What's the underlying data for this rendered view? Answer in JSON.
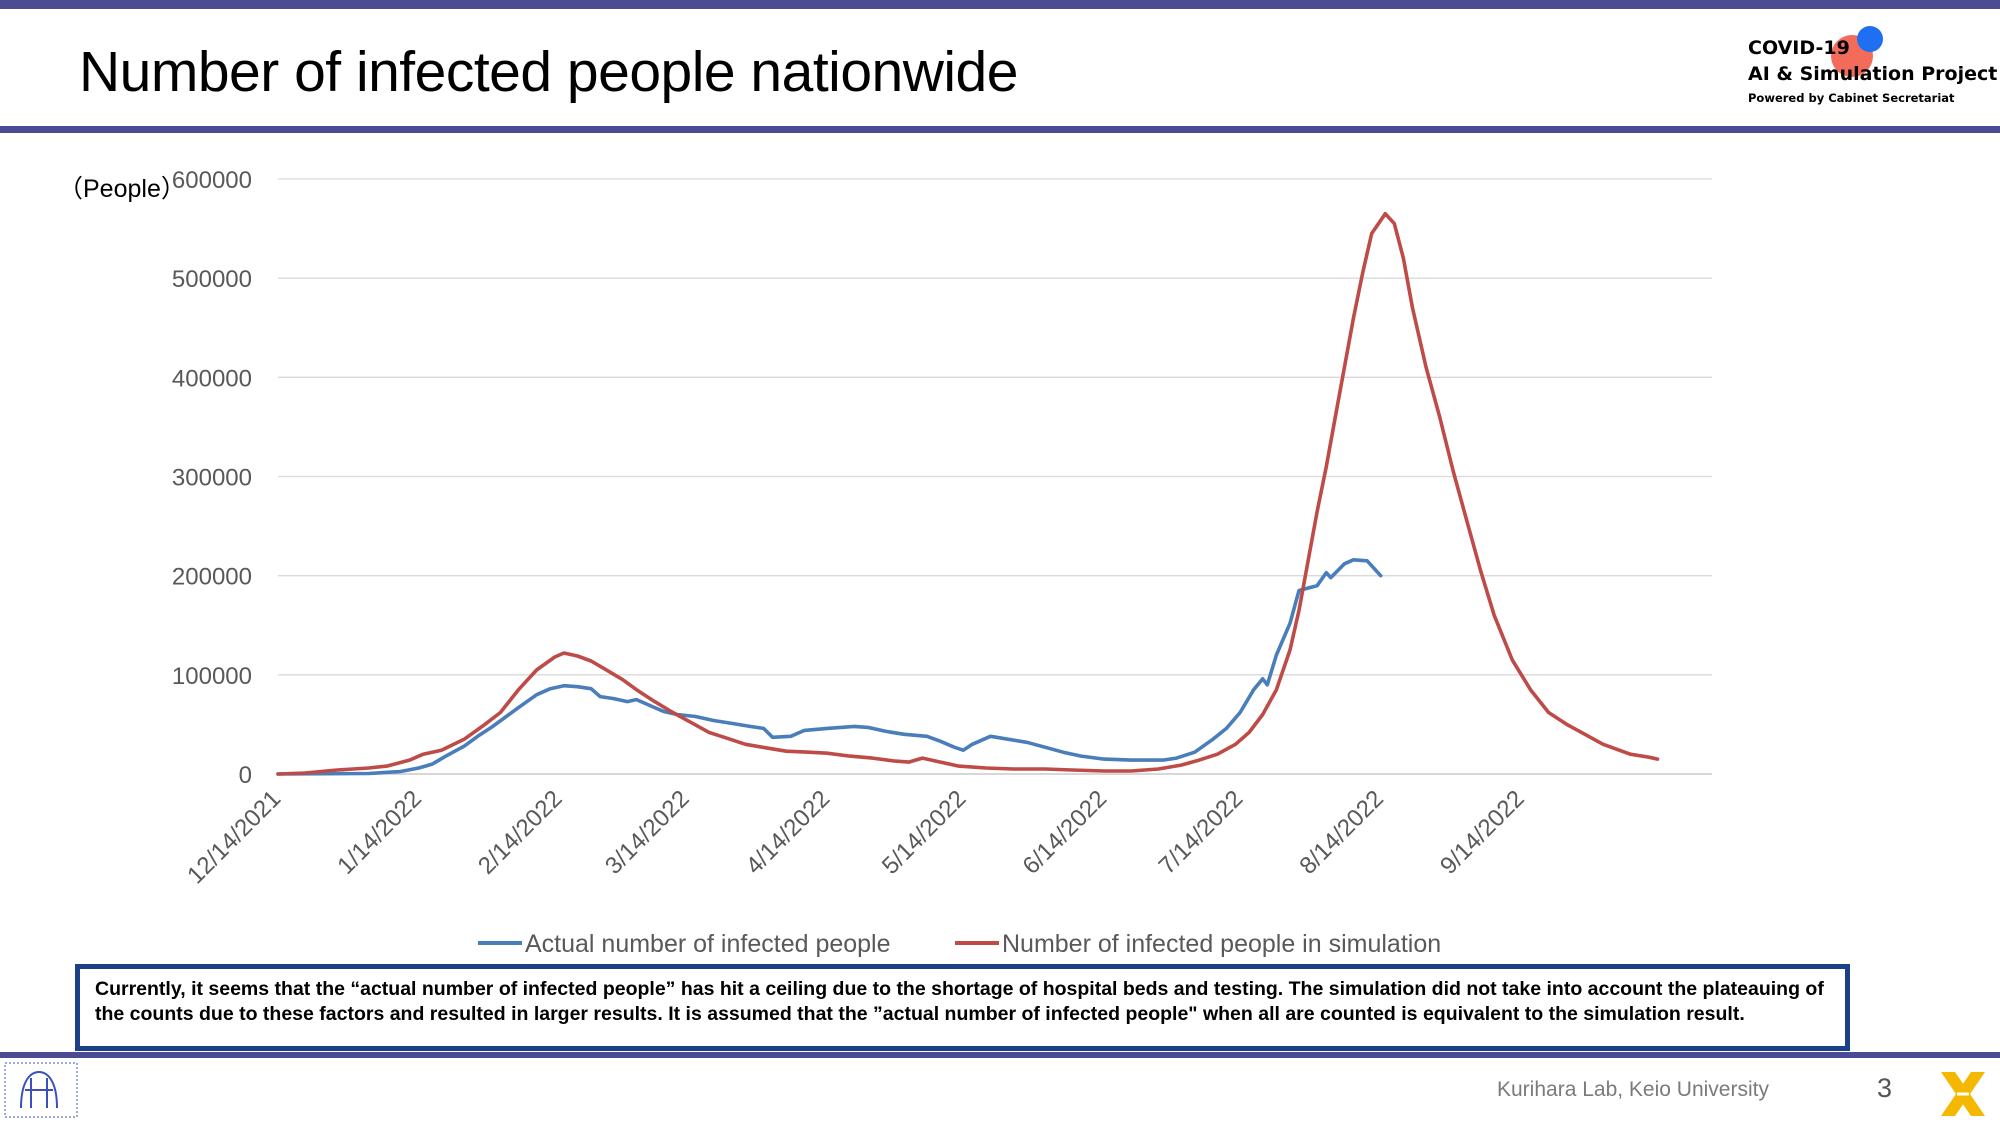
{
  "slide": {
    "title": "Number of infected people nationwide",
    "page_number": "3",
    "footer_credit": "Kurihara Lab, Keio University",
    "unit_label": "（People）"
  },
  "logo": {
    "line1": "COVID-19",
    "line2": "AI & Simulation Project",
    "line3": "Powered by Cabinet Secretariat"
  },
  "note": "Currently, it seems that the “actual number of infected people” has hit a ceiling due to the shortage of hospital beds and testing. The simulation did not take into account the plateauing of the counts due to these factors and resulted in larger results. It is assumed that the ”actual number of infected people\" when all are counted is equivalent to the simulation result.",
  "colors": {
    "accent_bar": "#4a4b93",
    "note_border": "#1c3f88",
    "actual_series": "#4a7ebb",
    "simulation_series": "#be4b48",
    "gridline": "#d9d9d9",
    "axis_text": "#595959"
  },
  "chart_data": {
    "type": "line",
    "title": "",
    "xlabel": "",
    "ylabel": "（People）",
    "ylim": [
      0,
      600000
    ],
    "yticks": [
      "0",
      "100000",
      "200000",
      "300000",
      "400000",
      "500000",
      "600000"
    ],
    "xlim": [
      "2021-12-14",
      "2022-10-26"
    ],
    "xticks": [
      "12/14/2021",
      "1/14/2022",
      "2/14/2022",
      "3/14/2022",
      "4/14/2022",
      "5/14/2022",
      "6/14/2022",
      "7/14/2022",
      "8/14/2022",
      "9/14/2022"
    ],
    "xtick_dates": [
      "2021-12-14",
      "2022-01-14",
      "2022-02-14",
      "2022-03-14",
      "2022-04-14",
      "2022-05-14",
      "2022-06-14",
      "2022-07-14",
      "2022-08-14",
      "2022-09-14"
    ],
    "grid": true,
    "legend": "bottom",
    "series": [
      {
        "name": "Actual number of infected people",
        "color": "#4a7ebb",
        "points": [
          [
            "2021-12-14",
            0
          ],
          [
            "2021-12-24",
            300
          ],
          [
            "2022-01-03",
            500
          ],
          [
            "2022-01-10",
            2500
          ],
          [
            "2022-01-14",
            6000
          ],
          [
            "2022-01-17",
            10000
          ],
          [
            "2022-01-20",
            18000
          ],
          [
            "2022-01-24",
            28000
          ],
          [
            "2022-01-27",
            38000
          ],
          [
            "2022-01-30",
            47000
          ],
          [
            "2022-02-02",
            57000
          ],
          [
            "2022-02-05",
            67000
          ],
          [
            "2022-02-09",
            80000
          ],
          [
            "2022-02-12",
            86000
          ],
          [
            "2022-02-15",
            89000
          ],
          [
            "2022-02-18",
            88000
          ],
          [
            "2022-02-21",
            86000
          ],
          [
            "2022-02-23",
            78000
          ],
          [
            "2022-02-26",
            76000
          ],
          [
            "2022-03-01",
            73000
          ],
          [
            "2022-03-03",
            75000
          ],
          [
            "2022-03-05",
            71000
          ],
          [
            "2022-03-07",
            67000
          ],
          [
            "2022-03-09",
            63000
          ],
          [
            "2022-03-12",
            60000
          ],
          [
            "2022-03-16",
            58000
          ],
          [
            "2022-03-20",
            54000
          ],
          [
            "2022-03-24",
            51000
          ],
          [
            "2022-03-28",
            48000
          ],
          [
            "2022-03-31",
            46000
          ],
          [
            "2022-04-02",
            37000
          ],
          [
            "2022-04-06",
            38000
          ],
          [
            "2022-04-09",
            44000
          ],
          [
            "2022-04-14",
            46000
          ],
          [
            "2022-04-20",
            48000
          ],
          [
            "2022-04-23",
            47000
          ],
          [
            "2022-04-27",
            43000
          ],
          [
            "2022-05-01",
            40000
          ],
          [
            "2022-05-06",
            38000
          ],
          [
            "2022-05-09",
            33000
          ],
          [
            "2022-05-12",
            27000
          ],
          [
            "2022-05-14",
            24000
          ],
          [
            "2022-05-16",
            30000
          ],
          [
            "2022-05-20",
            38000
          ],
          [
            "2022-05-24",
            35000
          ],
          [
            "2022-05-28",
            32000
          ],
          [
            "2022-06-01",
            27000
          ],
          [
            "2022-06-05",
            22000
          ],
          [
            "2022-06-09",
            18000
          ],
          [
            "2022-06-14",
            15000
          ],
          [
            "2022-06-20",
            14000
          ],
          [
            "2022-06-27",
            14000
          ],
          [
            "2022-06-30",
            16000
          ],
          [
            "2022-07-04",
            22000
          ],
          [
            "2022-07-08",
            35000
          ],
          [
            "2022-07-11",
            46000
          ],
          [
            "2022-07-14",
            62000
          ],
          [
            "2022-07-17",
            85000
          ],
          [
            "2022-07-19",
            96000
          ],
          [
            "2022-07-20",
            90000
          ],
          [
            "2022-07-22",
            120000
          ],
          [
            "2022-07-25",
            152000
          ],
          [
            "2022-07-27",
            185000
          ],
          [
            "2022-07-31",
            190000
          ],
          [
            "2022-08-02",
            203000
          ],
          [
            "2022-08-03",
            198000
          ],
          [
            "2022-08-06",
            212000
          ],
          [
            "2022-08-08",
            216000
          ],
          [
            "2022-08-11",
            215000
          ],
          [
            "2022-08-12",
            210000
          ],
          [
            "2022-08-14",
            200000
          ]
        ]
      },
      {
        "name": "Number of infected people in simulation",
        "color": "#be4b48",
        "points": [
          [
            "2021-12-14",
            0
          ],
          [
            "2021-12-20",
            1000
          ],
          [
            "2021-12-27",
            4000
          ],
          [
            "2022-01-03",
            6000
          ],
          [
            "2022-01-07",
            8000
          ],
          [
            "2022-01-12",
            14000
          ],
          [
            "2022-01-15",
            20000
          ],
          [
            "2022-01-19",
            24000
          ],
          [
            "2022-01-24",
            35000
          ],
          [
            "2022-01-28",
            48000
          ],
          [
            "2022-02-01",
            62000
          ],
          [
            "2022-02-05",
            85000
          ],
          [
            "2022-02-09",
            105000
          ],
          [
            "2022-02-13",
            118000
          ],
          [
            "2022-02-15",
            122000
          ],
          [
            "2022-02-18",
            119000
          ],
          [
            "2022-02-21",
            114000
          ],
          [
            "2022-02-24",
            106000
          ],
          [
            "2022-02-28",
            95000
          ],
          [
            "2022-03-03",
            85000
          ],
          [
            "2022-03-07",
            73000
          ],
          [
            "2022-03-11",
            62000
          ],
          [
            "2022-03-15",
            52000
          ],
          [
            "2022-03-19",
            42000
          ],
          [
            "2022-03-23",
            36000
          ],
          [
            "2022-03-27",
            30000
          ],
          [
            "2022-04-01",
            26000
          ],
          [
            "2022-04-05",
            23000
          ],
          [
            "2022-04-10",
            22000
          ],
          [
            "2022-04-14",
            21000
          ],
          [
            "2022-04-19",
            18000
          ],
          [
            "2022-04-24",
            16000
          ],
          [
            "2022-04-29",
            13000
          ],
          [
            "2022-05-02",
            12000
          ],
          [
            "2022-05-05",
            16000
          ],
          [
            "2022-05-09",
            12000
          ],
          [
            "2022-05-13",
            8000
          ],
          [
            "2022-05-19",
            6000
          ],
          [
            "2022-05-25",
            5000
          ],
          [
            "2022-06-01",
            5000
          ],
          [
            "2022-06-07",
            4000
          ],
          [
            "2022-06-14",
            3000
          ],
          [
            "2022-06-20",
            3000
          ],
          [
            "2022-06-26",
            5000
          ],
          [
            "2022-07-01",
            9000
          ],
          [
            "2022-07-05",
            14000
          ],
          [
            "2022-07-09",
            20000
          ],
          [
            "2022-07-13",
            30000
          ],
          [
            "2022-07-16",
            42000
          ],
          [
            "2022-07-19",
            60000
          ],
          [
            "2022-07-22",
            85000
          ],
          [
            "2022-07-25",
            125000
          ],
          [
            "2022-07-27",
            165000
          ],
          [
            "2022-07-29",
            215000
          ],
          [
            "2022-07-31",
            265000
          ],
          [
            "2022-08-02",
            310000
          ],
          [
            "2022-08-04",
            360000
          ],
          [
            "2022-08-06",
            410000
          ],
          [
            "2022-08-08",
            460000
          ],
          [
            "2022-08-10",
            505000
          ],
          [
            "2022-08-12",
            545000
          ],
          [
            "2022-08-15",
            565000
          ],
          [
            "2022-08-17",
            555000
          ],
          [
            "2022-08-19",
            520000
          ],
          [
            "2022-08-21",
            470000
          ],
          [
            "2022-08-24",
            410000
          ],
          [
            "2022-08-27",
            360000
          ],
          [
            "2022-08-30",
            305000
          ],
          [
            "2022-09-02",
            255000
          ],
          [
            "2022-09-05",
            205000
          ],
          [
            "2022-09-08",
            160000
          ],
          [
            "2022-09-12",
            115000
          ],
          [
            "2022-09-16",
            85000
          ],
          [
            "2022-09-20",
            62000
          ],
          [
            "2022-09-24",
            50000
          ],
          [
            "2022-09-28",
            40000
          ],
          [
            "2022-10-02",
            30000
          ],
          [
            "2022-10-08",
            20000
          ],
          [
            "2022-10-12",
            17000
          ],
          [
            "2022-10-14",
            15000
          ]
        ]
      }
    ]
  }
}
